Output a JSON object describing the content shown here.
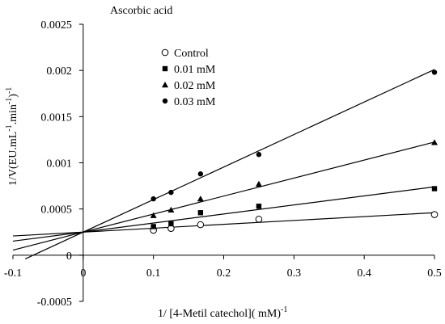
{
  "chart_data": {
    "type": "scatter",
    "title": "Ascorbic acid",
    "xlabel": "1/ [4-Metil catechol]( mM)",
    "xlabel_sup": "-1",
    "ylabel": "1/V(EU.mL",
    "ylabel_sup1": "-1",
    "ylabel_mid": ".min",
    "ylabel_sup2": "-1",
    "ylabel_end": ")",
    "ylabel_sup3": "-1",
    "xlim": [
      -0.1,
      0.5
    ],
    "ylim": [
      -0.0005,
      0.0025
    ],
    "x_ticks": [
      -0.1,
      0,
      0.1,
      0.2,
      0.3,
      0.4,
      0.5
    ],
    "x_tick_labels": [
      "-0.1",
      "0",
      "0.1",
      "0.2",
      "0.3",
      "0.4",
      "0.5"
    ],
    "y_ticks": [
      -0.0005,
      0,
      0.0005,
      0.001,
      0.0015,
      0.002,
      0.0025
    ],
    "y_tick_labels": [
      "-0.0005",
      "0",
      "0.0005",
      "0.001",
      "0.0015",
      "0.002",
      "0.0025"
    ],
    "grid": false,
    "legend_position": "top-left",
    "trendlines": true,
    "series": [
      {
        "name": "Control",
        "marker": "circle-open",
        "x": [
          0.1,
          0.125,
          0.167,
          0.25,
          0.5
        ],
        "y": [
          0.00027,
          0.00029,
          0.00033,
          0.00039,
          0.00044
        ],
        "line": {
          "slope": 0.00042,
          "intercept": 0.00025,
          "x_from": -0.1
        }
      },
      {
        "name": "0.01 mM",
        "marker": "square",
        "x": [
          0.1,
          0.125,
          0.167,
          0.25,
          0.5
        ],
        "y": [
          0.00031,
          0.00034,
          0.00046,
          0.00053,
          0.00072
        ],
        "line": {
          "slope": 0.00098,
          "intercept": 0.00025,
          "x_from": -0.1
        }
      },
      {
        "name": "0.02 mM",
        "marker": "triangle",
        "x": [
          0.1,
          0.125,
          0.167,
          0.25,
          0.5
        ],
        "y": [
          0.00043,
          0.00049,
          0.00061,
          0.00077,
          0.00122
        ],
        "line": {
          "slope": 0.00195,
          "intercept": 0.00025,
          "x_from": -0.1
        }
      },
      {
        "name": "0.03 mM",
        "marker": "circle",
        "x": [
          0.1,
          0.125,
          0.167,
          0.25,
          0.5
        ],
        "y": [
          0.00061,
          0.00068,
          0.00088,
          0.00109,
          0.00198
        ],
        "line": {
          "slope": 0.00352,
          "intercept": 0.00025,
          "x_from": -0.0825
        }
      }
    ]
  }
}
